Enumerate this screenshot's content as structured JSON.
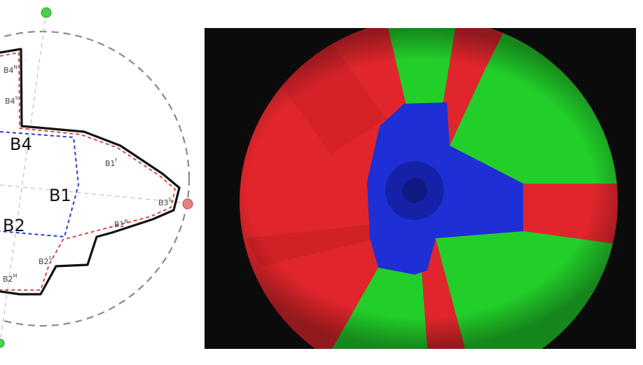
{
  "diagram": {
    "major_labels": {
      "b1": "B1",
      "b2": "B2",
      "b4": "B4"
    },
    "minor_labels": {
      "b4_top": "B4",
      "b4_top_sup": "N",
      "b4_mid": "B4",
      "b4_mid_sup": "S",
      "b1_upper": "B1",
      "b1_upper_sup": "f",
      "b1_right": "B3",
      "b1_right_sup": "S",
      "b1_lower": "B1",
      "b1_lower_sup": "N",
      "b2_lower": "B2",
      "b2_lower_sup": "S",
      "b2_bottom": "B2",
      "b2_bottom_sup": "M"
    },
    "markers": [
      {
        "name": "top-marker",
        "color": "#4ccf4c"
      },
      {
        "name": "right-marker",
        "color": "#e06060"
      },
      {
        "name": "bottom-marker",
        "color": "#4ccf4c"
      }
    ],
    "colors": {
      "outline": "#111111",
      "red_dashed": "#d03a3a",
      "blue_dashed": "#2a3fcf",
      "guide_circle": "#8a8a8a",
      "axes": "#c0c0c0"
    }
  },
  "segmentation": {
    "colors": {
      "red": "#e0262c",
      "green": "#22cf2a",
      "blue": "#1e2fd6",
      "background": "#0b0b0b"
    }
  }
}
